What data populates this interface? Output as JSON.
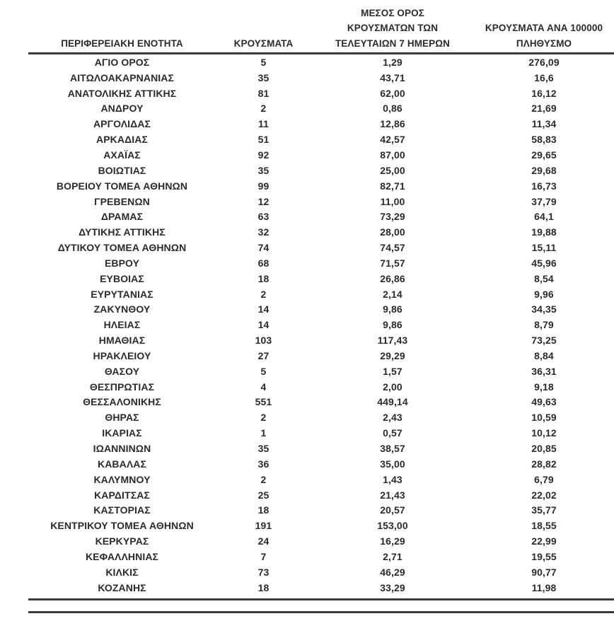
{
  "style": {
    "background": "#ffffff",
    "text_color": "#2b2b2b",
    "rule_color": "#3d3d3d"
  },
  "table": {
    "headers": {
      "region": "ΠΕΡΙΦΕΡΕΙΑΚΗ ΕΝΟΤΗΤΑ",
      "cases": "ΚΡΟΥΣΜΑΤΑ",
      "avg_7day": "ΜΕΣΟΣ ΟΡΟΣ\nΚΡΟΥΣΜΑΤΩΝ ΤΩΝ\nΤΕΛΕΥΤΑΙΩΝ 7 ΗΜΕΡΩΝ",
      "per_100k": "ΚΡΟΥΣΜΑΤΑ ΑΝΑ 100000\nΠΛΗΘΥΣΜΟ"
    },
    "rows": [
      [
        "ΑΓΙΟ ΟΡΟΣ",
        "5",
        "1,29",
        "276,09"
      ],
      [
        "ΑΙΤΩΛΟΑΚΑΡΝΑΝΙΑΣ",
        "35",
        "43,71",
        "16,6"
      ],
      [
        "ΑΝΑΤΟΛΙΚΗΣ ΑΤΤΙΚΗΣ",
        "81",
        "62,00",
        "16,12"
      ],
      [
        "ΑΝΔΡΟΥ",
        "2",
        "0,86",
        "21,69"
      ],
      [
        "ΑΡΓΟΛΙΔΑΣ",
        "11",
        "12,86",
        "11,34"
      ],
      [
        "ΑΡΚΑΔΙΑΣ",
        "51",
        "42,57",
        "58,83"
      ],
      [
        "ΑΧΑΪΑΣ",
        "92",
        "87,00",
        "29,65"
      ],
      [
        "ΒΟΙΩΤΙΑΣ",
        "35",
        "25,00",
        "29,68"
      ],
      [
        "ΒΟΡΕΙΟΥ ΤΟΜΕΑ ΑΘΗΝΩΝ",
        "99",
        "82,71",
        "16,73"
      ],
      [
        "ΓΡΕΒΕΝΩΝ",
        "12",
        "11,00",
        "37,79"
      ],
      [
        "ΔΡΑΜΑΣ",
        "63",
        "73,29",
        "64,1"
      ],
      [
        "ΔΥΤΙΚΗΣ ΑΤΤΙΚΗΣ",
        "32",
        "28,00",
        "19,88"
      ],
      [
        "ΔΥΤΙΚΟΥ ΤΟΜΕΑ ΑΘΗΝΩΝ",
        "74",
        "74,57",
        "15,11"
      ],
      [
        "ΕΒΡΟΥ",
        "68",
        "71,57",
        "45,96"
      ],
      [
        "ΕΥΒΟΙΑΣ",
        "18",
        "26,86",
        "8,54"
      ],
      [
        "ΕΥΡΥΤΑΝΙΑΣ",
        "2",
        "2,14",
        "9,96"
      ],
      [
        "ΖΑΚΥΝΘΟΥ",
        "14",
        "9,86",
        "34,35"
      ],
      [
        "ΗΛΕΙΑΣ",
        "14",
        "9,86",
        "8,79"
      ],
      [
        "ΗΜΑΘΙΑΣ",
        "103",
        "117,43",
        "73,25"
      ],
      [
        "ΗΡΑΚΛΕΙΟΥ",
        "27",
        "29,29",
        "8,84"
      ],
      [
        "ΘΑΣΟΥ",
        "5",
        "1,57",
        "36,31"
      ],
      [
        "ΘΕΣΠΡΩΤΙΑΣ",
        "4",
        "2,00",
        "9,18"
      ],
      [
        "ΘΕΣΣΑΛΟΝΙΚΗΣ",
        "551",
        "449,14",
        "49,63"
      ],
      [
        "ΘΗΡΑΣ",
        "2",
        "2,43",
        "10,59"
      ],
      [
        "ΙΚΑΡΙΑΣ",
        "1",
        "0,57",
        "10,12"
      ],
      [
        "ΙΩΑΝΝΙΝΩΝ",
        "35",
        "38,57",
        "20,85"
      ],
      [
        "ΚΑΒΑΛΑΣ",
        "36",
        "35,00",
        "28,82"
      ],
      [
        "ΚΑΛΥΜΝΟΥ",
        "2",
        "1,43",
        "6,79"
      ],
      [
        "ΚΑΡΔΙΤΣΑΣ",
        "25",
        "21,43",
        "22,02"
      ],
      [
        "ΚΑΣΤΟΡΙΑΣ",
        "18",
        "20,57",
        "35,77"
      ],
      [
        "ΚΕΝΤΡΙΚΟΥ ΤΟΜΕΑ ΑΘΗΝΩΝ",
        "191",
        "153,00",
        "18,55"
      ],
      [
        "ΚΕΡΚΥΡΑΣ",
        "24",
        "16,29",
        "22,99"
      ],
      [
        "ΚΕΦΑΛΛΗΝΙΑΣ",
        "7",
        "2,71",
        "19,55"
      ],
      [
        "ΚΙΛΚΙΣ",
        "73",
        "46,29",
        "90,77"
      ],
      [
        "ΚΟΖΑΝΗΣ",
        "18",
        "33,29",
        "11,98"
      ]
    ]
  }
}
